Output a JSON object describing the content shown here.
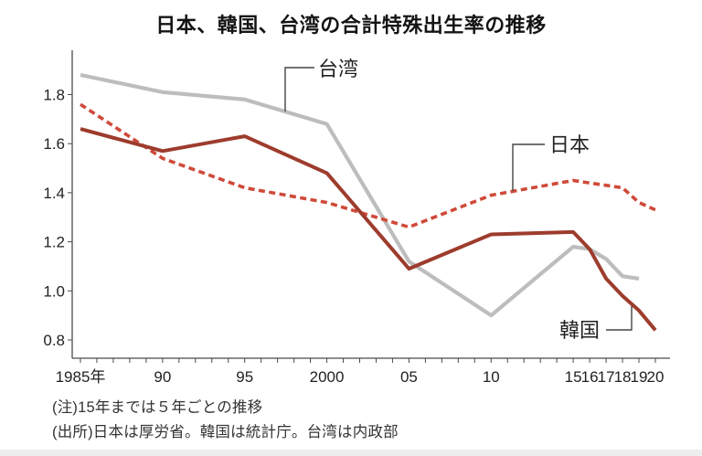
{
  "title": "日本、韓国、台湾の合計特殊出生率の推移",
  "notes": {
    "note1": "(注)15年までは５年ごとの推移",
    "note2": "(出所)日本は厚労省。韓国は統計庁。台湾は内政部"
  },
  "chart_data": {
    "type": "line",
    "title": "日本、韓国、台湾の合計特殊出生率の推移",
    "x_years": [
      1985,
      1990,
      1995,
      2000,
      2005,
      2010,
      2015,
      2016,
      2017,
      2018,
      2019,
      2020
    ],
    "xtick_labels": [
      "1985年",
      "90",
      "95",
      "2000",
      "05",
      "10",
      "15",
      "16",
      "17",
      "18",
      "19",
      "20"
    ],
    "minor_xticks_every_year": true,
    "yticks": [
      0.8,
      1.0,
      1.2,
      1.4,
      1.6,
      1.8
    ],
    "ylim": [
      0.8,
      1.98
    ],
    "grid": false,
    "legend_position": "inline-callouts",
    "series": [
      {
        "name": "台湾",
        "source_note": "台湾は内政部",
        "color": "#bdbdbd",
        "dash": "solid",
        "values": [
          1.88,
          1.81,
          1.78,
          1.68,
          1.12,
          0.9,
          1.18,
          1.17,
          1.13,
          1.06,
          1.05,
          null
        ]
      },
      {
        "name": "日本",
        "source_note": "日本は厚労省",
        "color": "#cf4a39",
        "dash": "dashed",
        "values": [
          1.76,
          1.54,
          1.42,
          1.36,
          1.26,
          1.39,
          1.45,
          1.44,
          1.43,
          1.42,
          1.36,
          1.33
        ]
      },
      {
        "name": "韓国",
        "source_note": "韓国は統計庁",
        "color": "#9d3c2d",
        "dash": "solid",
        "values": [
          1.66,
          1.57,
          1.63,
          1.48,
          1.09,
          1.23,
          1.24,
          1.17,
          1.05,
          0.98,
          0.92,
          0.84
        ]
      }
    ]
  }
}
